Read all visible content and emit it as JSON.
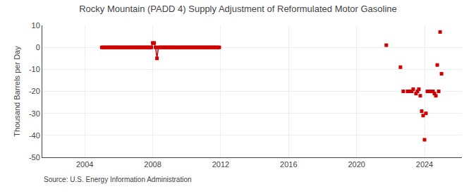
{
  "chart_data": {
    "type": "line",
    "title": "Rocky Mountain (PADD 4) Supply Adjustment of Reformulated Motor Gasoline",
    "ylabel": "Thousand Barrels per Day",
    "annotations": [
      "Source: U.S. Energy Information Administration"
    ],
    "xlim": [
      2001.5,
      2026.2
    ],
    "ylim": [
      -50,
      10
    ],
    "xticks": [
      2004,
      2008,
      2012,
      2016,
      2020,
      2024
    ],
    "yticks": [
      10,
      0,
      -10,
      -20,
      -30,
      -40,
      -50
    ],
    "grid": true,
    "series": [
      {
        "type": "line",
        "color": "#cc0000",
        "marker": "square",
        "x": [
          2005.0,
          2005.083,
          2005.167,
          2005.25,
          2005.333,
          2005.417,
          2005.5,
          2005.583,
          2005.667,
          2005.75,
          2005.833,
          2005.917,
          2006.0,
          2006.083,
          2006.167,
          2006.25,
          2006.333,
          2006.417,
          2006.5,
          2006.583,
          2006.667,
          2006.75,
          2006.833,
          2006.917,
          2007.0,
          2007.083,
          2007.167,
          2007.25,
          2007.333,
          2007.417,
          2007.5,
          2007.583,
          2007.667,
          2007.75,
          2007.833,
          2007.917,
          2008.0,
          2008.083,
          2008.167,
          2008.25,
          2008.333,
          2008.417,
          2008.5,
          2008.583,
          2008.667,
          2008.75,
          2008.833,
          2008.917,
          2009.0,
          2009.083,
          2009.167,
          2009.25,
          2009.333,
          2009.417,
          2009.5,
          2009.583,
          2009.667,
          2009.75,
          2009.833,
          2009.917,
          2010.0,
          2010.083,
          2010.167,
          2010.25,
          2010.333,
          2010.417,
          2010.5,
          2010.583,
          2010.667,
          2010.75,
          2010.833,
          2010.917,
          2011.0,
          2011.083,
          2011.167,
          2011.25,
          2011.333,
          2011.417,
          2011.5,
          2011.583,
          2011.667,
          2011.75,
          2011.833,
          2011.917
        ],
        "values": [
          0,
          0,
          0,
          0,
          0,
          0,
          0,
          0,
          0,
          0,
          0,
          0,
          0,
          0,
          0,
          0,
          0,
          0,
          0,
          0,
          0,
          0,
          0,
          0,
          0,
          0,
          0,
          0,
          0,
          0,
          0,
          0,
          0,
          0,
          0,
          0,
          2,
          2,
          0,
          -5,
          0,
          0,
          0,
          0,
          0,
          0,
          0,
          0,
          0,
          0,
          0,
          0,
          0,
          0,
          0,
          0,
          0,
          0,
          0,
          0,
          0,
          0,
          0,
          0,
          0,
          0,
          0,
          0,
          0,
          0,
          0,
          0,
          0,
          0,
          0,
          0,
          0,
          0,
          0,
          0,
          0,
          0,
          0,
          0
        ]
      },
      {
        "type": "scatter",
        "color": "#cc0000",
        "marker": "square",
        "x": [
          2021.75,
          2022.583,
          2022.75,
          2023.0,
          2023.083,
          2023.25,
          2023.333,
          2023.5,
          2023.583,
          2023.667,
          2023.75,
          2023.833,
          2023.917,
          2024.0,
          2024.083,
          2024.167,
          2024.25,
          2024.333,
          2024.417,
          2024.5,
          2024.583,
          2024.667,
          2024.75,
          2024.833,
          2024.917,
          2025.0
        ],
        "values": [
          1,
          -9,
          -20,
          -20,
          -20,
          -20,
          -19,
          -21,
          -20,
          -19,
          -22,
          -29,
          -31,
          -42,
          -30,
          -20,
          -20,
          -20,
          -20,
          -20,
          -21,
          -22,
          -8,
          -20,
          7,
          -12
        ]
      }
    ]
  }
}
